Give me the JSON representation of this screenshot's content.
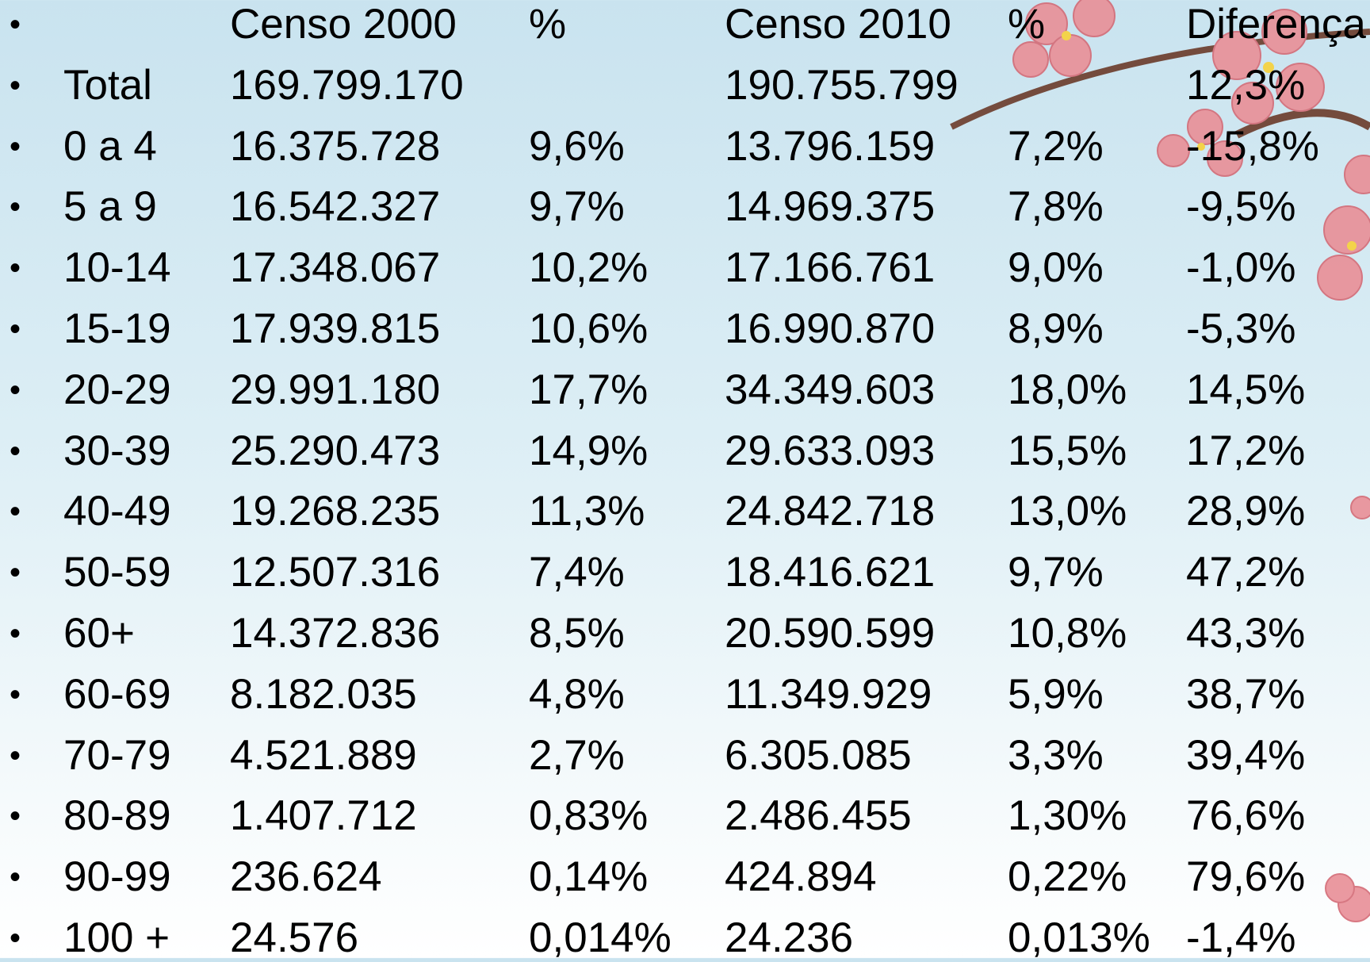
{
  "table": {
    "header": {
      "c2000": "Censo 2000",
      "p2000": "%",
      "c2010": "Censo 2010",
      "p2010": "%",
      "diff": "Diferença"
    },
    "rows": [
      {
        "label": "Total",
        "c2000": "169.799.170",
        "c2010": "190.755.799",
        "diff": "12,3%"
      },
      {
        "label": "0 a 4",
        "c2000": "16.375.728",
        "p2000": "9,6%",
        "c2010": "13.796.159",
        "p2010": "7,2%",
        "diff": "-15,8%"
      },
      {
        "label": "5 a 9",
        "c2000": "16.542.327",
        "p2000": "9,7%",
        "c2010": "14.969.375",
        "p2010": "7,8%",
        "diff": "-9,5%"
      },
      {
        "label": "10-14",
        "c2000": "17.348.067",
        "p2000": "10,2%",
        "c2010": "17.166.761",
        "p2010": "9,0%",
        "diff": "-1,0%"
      },
      {
        "label": "15-19",
        "c2000": "17.939.815",
        "p2000": "10,6%",
        "c2010": "16.990.870",
        "p2010": "8,9%",
        "diff": "-5,3%"
      },
      {
        "label": "20-29",
        "c2000": "29.991.180",
        "p2000": "17,7%",
        "c2010": "34.349.603",
        "p2010": "18,0%",
        "diff": "14,5%"
      },
      {
        "label": "30-39",
        "c2000": "25.290.473",
        "p2000": "14,9%",
        "c2010": "29.633.093",
        "p2010": "15,5%",
        "diff": "17,2%"
      },
      {
        "label": "40-49",
        "c2000": "19.268.235",
        "p2000": "11,3%",
        "c2010": "24.842.718",
        "p2010": "13,0%",
        "diff": "28,9%"
      },
      {
        "label": "50-59",
        "c2000": "12.507.316",
        "p2000": "7,4%",
        "c2010": "18.416.621",
        "p2010": "9,7%",
        "diff": "47,2%"
      },
      {
        "label": "60+",
        "c2000": "14.372.836",
        "p2000": "8,5%",
        "c2010": "20.590.599",
        "p2010": "10,8%",
        "diff": "43,3%"
      },
      {
        "label": "60-69",
        "c2000": "8.182.035",
        "p2000": "4,8%",
        "c2010": "11.349.929",
        "p2010": "5,9%",
        "diff": "38,7%"
      },
      {
        "label": "70-79",
        "c2000": "4.521.889",
        "p2000": "2,7%",
        "c2010": "6.305.085",
        "p2010": "3,3%",
        "diff": "39,4%"
      },
      {
        "label": "80-89",
        "c2000": "1.407.712",
        "p2000": "0,83%",
        "c2010": "2.486.455",
        "p2010": "1,30%",
        "diff": "76,6%"
      },
      {
        "label": "90-99",
        "c2000": "236.624",
        "p2000": "0,14%",
        "c2010": "424.894",
        "p2010": "0,22%",
        "diff": "79,6%"
      },
      {
        "label": "100 +",
        "c2000": "24.576",
        "p2000": "0,014%",
        "c2010": "24.236",
        "p2010": "0,013%",
        "diff": "-1,4%"
      }
    ]
  }
}
